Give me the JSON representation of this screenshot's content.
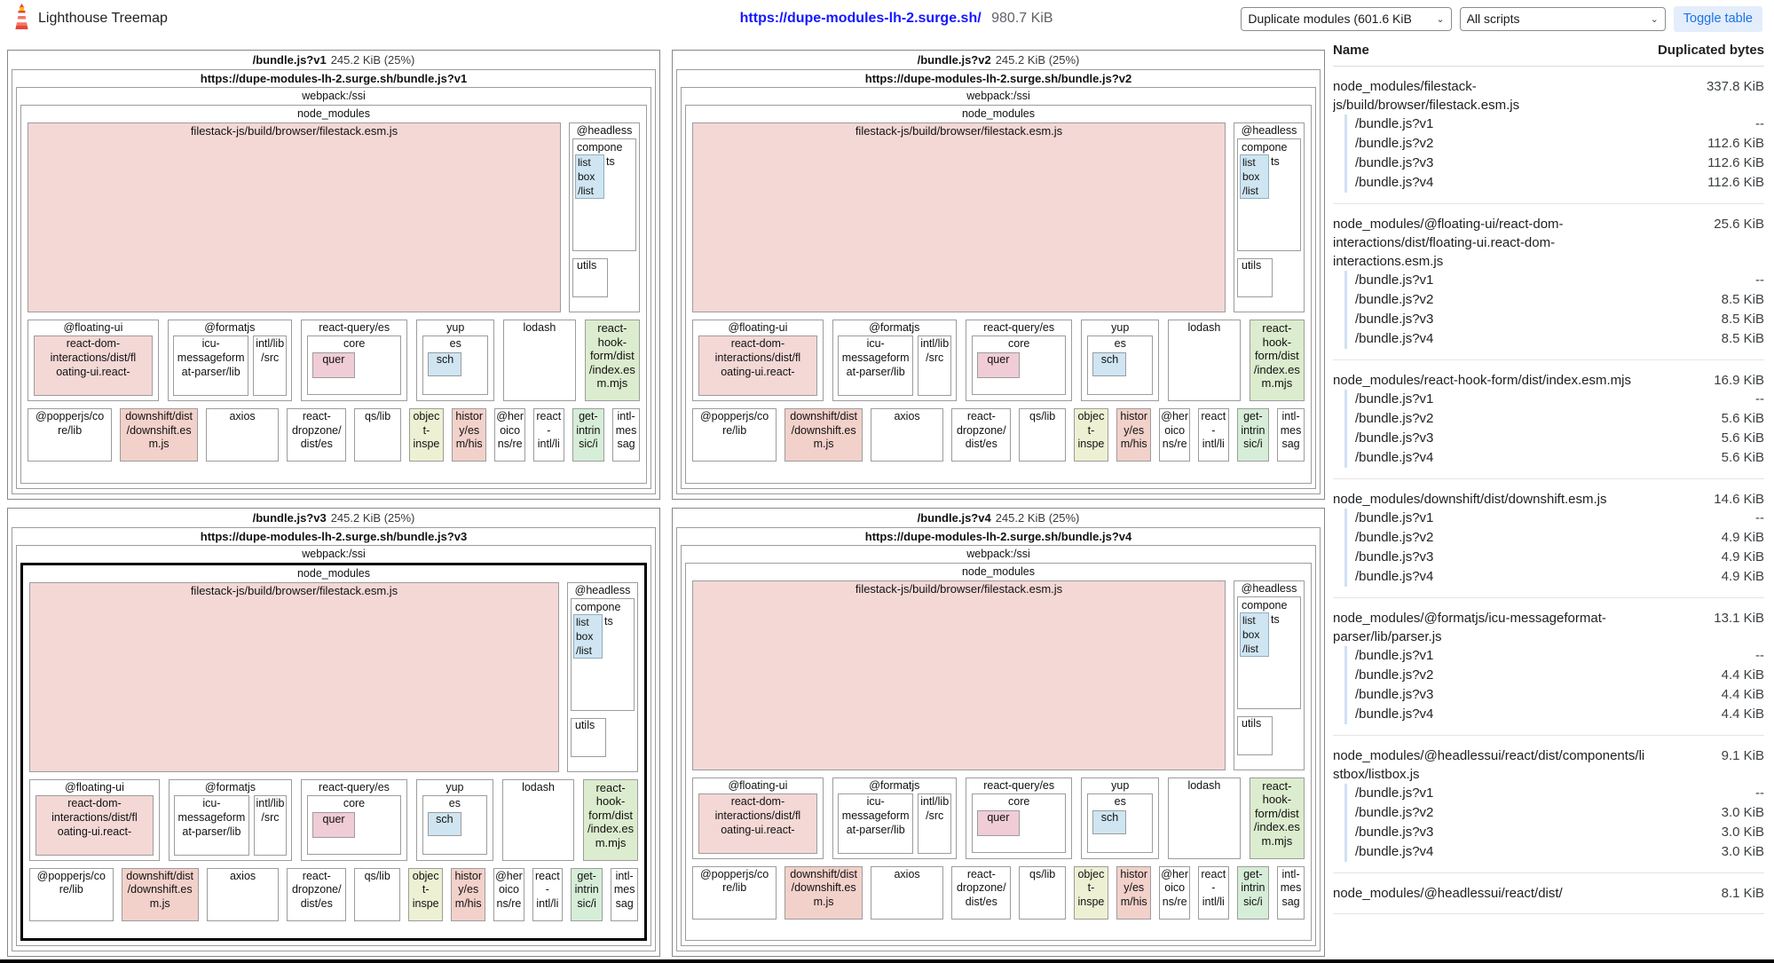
{
  "header": {
    "app_title": "Lighthouse Treemap",
    "url": "https://dupe-modules-lh-2.surge.sh/",
    "total_size": "980.7 KiB",
    "module_select_value": "Duplicate modules (601.6 KiB",
    "script_select_value": "All scripts",
    "toggle_table_label": "Toggle table",
    "chevron": "⌄"
  },
  "panels": [
    {
      "name": "/bundle.js?v1",
      "size": "245.2 KiB (25%)",
      "url": "https://dupe-modules-lh-2.surge.sh/bundle.js?v1",
      "highlighted": false
    },
    {
      "name": "/bundle.js?v2",
      "size": "245.2 KiB (25%)",
      "url": "https://dupe-modules-lh-2.surge.sh/bundle.js?v2",
      "highlighted": false
    },
    {
      "name": "/bundle.js?v3",
      "size": "245.2 KiB (25%)",
      "url": "https://dupe-modules-lh-2.surge.sh/bundle.js?v3",
      "highlighted": true
    },
    {
      "name": "/bundle.js?v4",
      "size": "245.2 KiB (25%)",
      "url": "https://dupe-modules-lh-2.surge.sh/bundle.js?v4",
      "highlighted": false
    }
  ],
  "tree": {
    "webpack": "webpack:/ssi",
    "node_modules": "node_modules",
    "filestack": "filestack-js/build/browser/filestack.esm.js",
    "headless": "@headless",
    "components": "compone",
    "components_rest": "ts",
    "listbox": "list\nbox\n/list",
    "utils": "utils",
    "floating": "@floating-ui",
    "floating_child": "react-dom-\ninteractions/dist/fl\noating-ui.react-",
    "formatjs": "@formatjs",
    "icu": "icu-\nmessageform\nat-parser/lib",
    "intl_lib": "intl/lib\n/src",
    "react_query": "react-query/es",
    "core": "core",
    "quer": "quer",
    "yup": "yup",
    "es": "es",
    "sch": "sch",
    "lodash": "lodash",
    "react_hook": "react-\nhook-\nform/dist\n/index.es\nm.mjs",
    "popperjs": "@popperjs/co\nre/lib",
    "downshift": "downshift/dist\n/downshift.es\nm.js",
    "axios": "axios",
    "dropzone": "react-\ndropzone/\ndist/es",
    "qs": "qs/lib",
    "object_inspect": "objec\nt-\ninspe",
    "history": "histor\ny/es\nm/his",
    "heroicons": "@her\noico\nns/re",
    "react_intl": "react\n-\nintl/li",
    "get_intrinsic": "get-\nintrin\nsic/i",
    "intl_messageformat": "intl-\nmes\nsag"
  },
  "table": {
    "name_header": "Name",
    "bytes_header": "Duplicated bytes",
    "bundle_labels": [
      "/bundle.js?v1",
      "/bundle.js?v2",
      "/bundle.js?v3",
      "/bundle.js?v4"
    ],
    "groups": [
      {
        "name": "node_modules/filestack-js/build/browser/filestack.esm.js",
        "total": "337.8 KiB",
        "values": [
          "--",
          "112.6 KiB",
          "112.6 KiB",
          "112.6 KiB"
        ]
      },
      {
        "name": "node_modules/@floating-ui/react-dom-interactions/dist/floating-ui.react-dom-interactions.esm.js",
        "total": "25.6 KiB",
        "values": [
          "--",
          "8.5 KiB",
          "8.5 KiB",
          "8.5 KiB"
        ]
      },
      {
        "name": "node_modules/react-hook-form/dist/index.esm.mjs",
        "total": "16.9 KiB",
        "values": [
          "--",
          "5.6 KiB",
          "5.6 KiB",
          "5.6 KiB"
        ]
      },
      {
        "name": "node_modules/downshift/dist/downshift.esm.js",
        "total": "14.6 KiB",
        "values": [
          "--",
          "4.9 KiB",
          "4.9 KiB",
          "4.9 KiB"
        ]
      },
      {
        "name": "node_modules/@formatjs/icu-messageformat-parser/lib/parser.js",
        "total": "13.1 KiB",
        "values": [
          "--",
          "4.4 KiB",
          "4.4 KiB",
          "4.4 KiB"
        ]
      },
      {
        "name": "node_modules/@headlessui/react/dist/components/listbox/listbox.js",
        "total": "9.1 KiB",
        "values": [
          "--",
          "3.0 KiB",
          "3.0 KiB",
          "3.0 KiB"
        ]
      },
      {
        "name": "node_modules/@headlessui/react/dist/",
        "total": "8.1 KiB",
        "values": []
      }
    ]
  },
  "colors": {
    "pink": "#f3d8d6",
    "salmon": "#f2d1ca",
    "magenta_pink": "#f0ccd6",
    "blue": "#cfe5f2",
    "green": "#dcecce",
    "mint": "#d6edd7",
    "khaki": "#eef0d3",
    "link_blue": "#1418ff",
    "button_blue": "#1a73e8",
    "button_bg": "#e4edfb"
  }
}
